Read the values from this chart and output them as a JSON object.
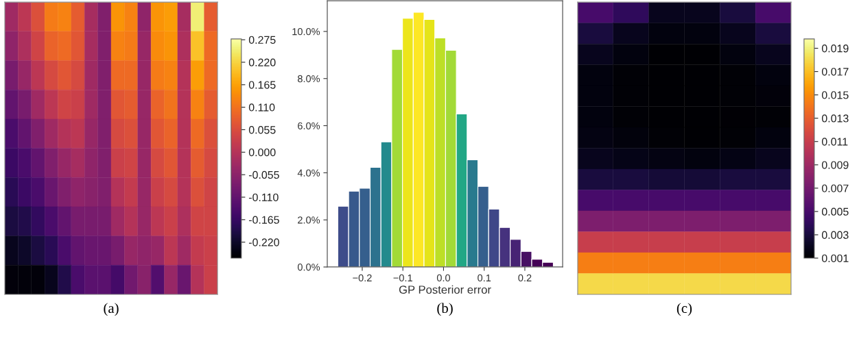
{
  "chart_data": [
    {
      "type": "heatmap",
      "categories": [
        null,
        null,
        null,
        null,
        null,
        null,
        null,
        null,
        null,
        null,
        null,
        null,
        null,
        null,
        null,
        null
      ],
      "y_categories": [
        null,
        null,
        null,
        null,
        null,
        null,
        null,
        null,
        null,
        null
      ],
      "clim": [
        -0.259,
        0.277
      ],
      "cticks": [
        {
          "value": 0.275,
          "label": "0.275"
        },
        {
          "value": 0.22,
          "label": "0.220"
        },
        {
          "value": 0.165,
          "label": "0.165"
        },
        {
          "value": 0.11,
          "label": "0.110"
        },
        {
          "value": 0.055,
          "label": "0.055"
        },
        {
          "value": 0.0,
          "label": "0.000"
        },
        {
          "value": -0.055,
          "label": "-0.055"
        },
        {
          "value": -0.11,
          "label": "-0.110"
        },
        {
          "value": -0.165,
          "label": "-0.165"
        },
        {
          "value": -0.22,
          "label": "-0.220"
        }
      ],
      "cells": [
        [
          -0.03,
          0.01,
          0.06,
          0.12,
          0.13,
          0.08,
          -0.02,
          -0.07,
          0.15,
          0.13,
          -0.05,
          0.15,
          0.16,
          -0.02,
          0.25,
          0.08
        ],
        [
          -0.05,
          -0.01,
          0.04,
          0.09,
          0.1,
          0.07,
          -0.02,
          -0.07,
          0.13,
          0.12,
          -0.04,
          0.14,
          0.15,
          -0.01,
          0.2,
          0.1
        ],
        [
          -0.08,
          -0.04,
          0.01,
          0.05,
          0.07,
          0.05,
          -0.03,
          -0.07,
          0.1,
          0.1,
          -0.04,
          0.12,
          0.13,
          0.0,
          0.16,
          0.1
        ],
        [
          -0.11,
          -0.08,
          -0.03,
          0.01,
          0.04,
          0.03,
          -0.03,
          -0.07,
          0.07,
          0.08,
          -0.04,
          0.09,
          0.11,
          0.0,
          0.13,
          0.08
        ],
        [
          -0.14,
          -0.11,
          -0.07,
          -0.03,
          0.0,
          0.01,
          -0.04,
          -0.07,
          0.05,
          0.06,
          -0.04,
          0.07,
          0.09,
          0.0,
          0.1,
          0.06
        ],
        [
          -0.16,
          -0.14,
          -0.11,
          -0.07,
          -0.04,
          -0.02,
          -0.05,
          -0.07,
          0.03,
          0.04,
          -0.04,
          0.05,
          0.07,
          0.0,
          0.08,
          0.05
        ],
        [
          -0.18,
          -0.16,
          -0.14,
          -0.1,
          -0.07,
          -0.05,
          -0.06,
          -0.07,
          0.0,
          0.02,
          -0.04,
          0.03,
          0.05,
          0.0,
          0.06,
          0.04
        ],
        [
          -0.2,
          -0.19,
          -0.17,
          -0.14,
          -0.11,
          -0.08,
          -0.08,
          -0.08,
          -0.03,
          0.0,
          -0.04,
          0.01,
          0.03,
          -0.01,
          0.04,
          0.04
        ],
        [
          -0.23,
          -0.22,
          -0.2,
          -0.18,
          -0.14,
          -0.11,
          -0.1,
          -0.1,
          -0.08,
          -0.04,
          -0.05,
          -0.04,
          0.01,
          -0.03,
          0.02,
          0.03
        ],
        [
          -0.25,
          -0.25,
          -0.25,
          -0.23,
          -0.19,
          -0.14,
          -0.12,
          -0.12,
          -0.15,
          -0.09,
          -0.06,
          -0.13,
          -0.04,
          -0.1,
          0.0,
          0.03
        ]
      ],
      "annotations": [
        "(a)"
      ]
    },
    {
      "type": "histogram",
      "xlabel": "GP Posterior error",
      "bins": [
        -0.26,
        -0.2335,
        -0.207,
        -0.1805,
        -0.154,
        -0.1275,
        -0.101,
        -0.0745,
        -0.048,
        -0.0215,
        0.005,
        0.0315,
        0.058,
        0.0845,
        0.111,
        0.1375,
        0.164,
        0.1905,
        0.217,
        0.2435,
        0.27
      ],
      "values": [
        2.58,
        3.22,
        3.34,
        4.23,
        5.31,
        9.24,
        10.56,
        10.81,
        10.51,
        9.72,
        9.2,
        6.5,
        4.55,
        3.42,
        2.46,
        1.68,
        1.17,
        0.66,
        0.33,
        0.2
      ],
      "colors": [
        "#3e4c8a",
        "#38598c",
        "#355f8d",
        "#2c728e",
        "#238a8d",
        "#a2da37",
        "#ece51b",
        "#fde725",
        "#e5e419",
        "#bddf26",
        "#a2da37",
        "#22a785",
        "#297a8e",
        "#355f8d",
        "#3f4788",
        "#46327e",
        "#472374",
        "#471063",
        "#440256",
        "#440154"
      ],
      "xlim": [
        -0.286,
        0.293
      ],
      "ylim": [
        0,
        11.3
      ],
      "xticks": [
        {
          "value": -0.2,
          "label": "−0.2"
        },
        {
          "value": -0.1,
          "label": "−0.1"
        },
        {
          "value": 0.0,
          "label": "0.0"
        },
        {
          "value": 0.1,
          "label": "0.1"
        },
        {
          "value": 0.2,
          "label": "0.2"
        }
      ],
      "yticks": [
        {
          "value": 0,
          "label": "0.0%"
        },
        {
          "value": 2,
          "label": "2.0%"
        },
        {
          "value": 4,
          "label": "4.0%"
        },
        {
          "value": 6,
          "label": "6.0%"
        },
        {
          "value": 8,
          "label": "8.0%"
        },
        {
          "value": 10,
          "label": "10.0%"
        }
      ],
      "grid": false,
      "annotations": [
        "(b)"
      ]
    },
    {
      "type": "heatmap",
      "categories": [
        null,
        null,
        null,
        null,
        null,
        null
      ],
      "y_categories": [
        null,
        null,
        null,
        null,
        null,
        null,
        null,
        null,
        null,
        null,
        null,
        null,
        null,
        null
      ],
      "clim": [
        0.001,
        0.0198
      ],
      "cticks": [
        0.019,
        0.017,
        0.015,
        0.013,
        0.011,
        0.009,
        0.007,
        0.005,
        0.003,
        0.001
      ],
      "cells": [
        [
          0.005,
          0.004,
          0.002,
          0.002,
          0.003,
          0.005
        ],
        [
          0.003,
          0.002,
          0.0015,
          0.0015,
          0.002,
          0.003
        ],
        [
          0.002,
          0.0015,
          0.001,
          0.001,
          0.0015,
          0.002
        ],
        [
          0.0015,
          0.0012,
          0.001,
          0.001,
          0.0012,
          0.0015
        ],
        [
          0.0015,
          0.0012,
          0.001,
          0.001,
          0.0012,
          0.0013
        ],
        [
          0.0015,
          0.0012,
          0.001,
          0.001,
          0.0011,
          0.0012
        ],
        [
          0.0016,
          0.0014,
          0.0012,
          0.001,
          0.0012,
          0.0015
        ],
        [
          0.002,
          0.0018,
          0.0016,
          0.0015,
          0.0017,
          0.002
        ],
        [
          0.003,
          0.003,
          0.0028,
          0.0028,
          0.003,
          0.003
        ],
        [
          0.005,
          0.005,
          0.005,
          0.005,
          0.005,
          0.005
        ],
        [
          0.0075,
          0.0075,
          0.0075,
          0.0075,
          0.0075,
          0.0075
        ],
        [
          0.011,
          0.011,
          0.011,
          0.011,
          0.011,
          0.011
        ],
        [
          0.0145,
          0.0145,
          0.0145,
          0.0145,
          0.0145,
          0.0145
        ],
        [
          0.018,
          0.018,
          0.018,
          0.018,
          0.018,
          0.018
        ]
      ],
      "annotations": [
        "(c)"
      ]
    }
  ]
}
